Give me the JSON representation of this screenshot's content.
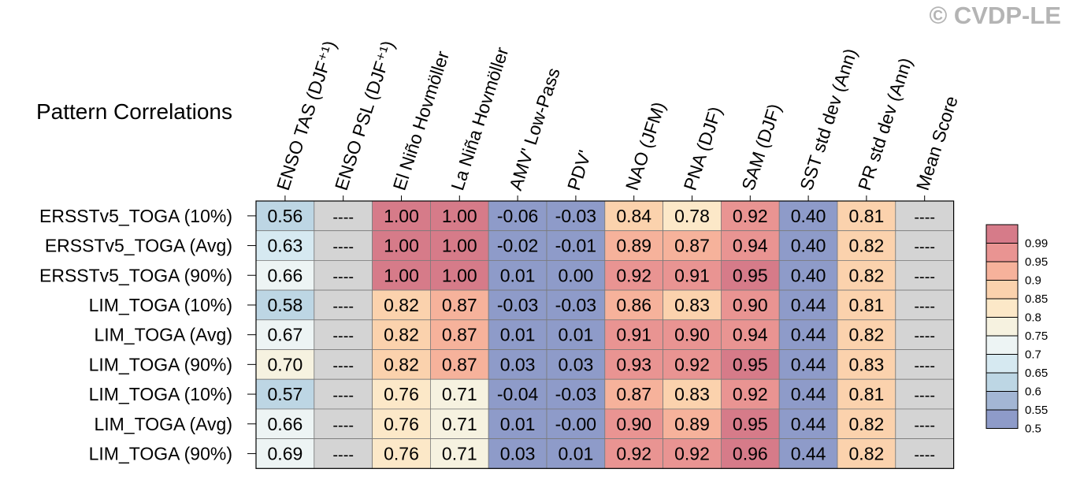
{
  "watermark": "© CVDP-LE",
  "chart_data": {
    "type": "heatmap",
    "title": "Pattern Correlations",
    "columns": [
      "ENSO TAS (DJF⁺¹)",
      "ENSO PSL (DJF⁺¹)",
      "El Niño Hovmöller",
      "La Niña Hovmöller",
      "AMV' Low-Pass",
      "PDV'",
      "NAO (JFM)",
      "PNA (DJF)",
      "SAM (DJF)",
      "SST std dev (Ann)",
      "PR std dev (Ann)",
      "Mean Score"
    ],
    "rows": [
      "ERSSTv5_TOGA (10%)",
      "ERSSTv5_TOGA (Avg)",
      "ERSSTv5_TOGA (90%)",
      "LIM_TOGA (10%)",
      "LIM_TOGA (Avg)",
      "LIM_TOGA (90%)",
      "LIM_TOGA (10%)",
      "LIM_TOGA (Avg)",
      "LIM_TOGA (90%)"
    ],
    "cells": [
      [
        "0.56",
        "----",
        "1.00",
        "1.00",
        "-0.06",
        "-0.03",
        "0.84",
        "0.78",
        "0.92",
        "0.40",
        "0.81",
        "----"
      ],
      [
        "0.63",
        "----",
        "1.00",
        "1.00",
        "-0.02",
        "-0.01",
        "0.89",
        "0.87",
        "0.94",
        "0.40",
        "0.82",
        "----"
      ],
      [
        "0.66",
        "----",
        "1.00",
        "1.00",
        "0.01",
        "0.00",
        "0.92",
        "0.91",
        "0.95",
        "0.40",
        "0.82",
        "----"
      ],
      [
        "0.58",
        "----",
        "0.82",
        "0.87",
        "-0.03",
        "-0.03",
        "0.86",
        "0.83",
        "0.90",
        "0.44",
        "0.81",
        "----"
      ],
      [
        "0.67",
        "----",
        "0.82",
        "0.87",
        "0.01",
        "0.01",
        "0.91",
        "0.90",
        "0.94",
        "0.44",
        "0.82",
        "----"
      ],
      [
        "0.70",
        "----",
        "0.82",
        "0.87",
        "0.03",
        "0.03",
        "0.93",
        "0.92",
        "0.95",
        "0.44",
        "0.83",
        "----"
      ],
      [
        "0.57",
        "----",
        "0.76",
        "0.71",
        "-0.04",
        "-0.03",
        "0.87",
        "0.83",
        "0.92",
        "0.44",
        "0.81",
        "----"
      ],
      [
        "0.66",
        "----",
        "0.76",
        "0.71",
        "0.01",
        "-0.00",
        "0.90",
        "0.89",
        "0.95",
        "0.44",
        "0.82",
        "----"
      ],
      [
        "0.69",
        "----",
        "0.76",
        "0.71",
        "0.03",
        "0.01",
        "0.92",
        "0.92",
        "0.96",
        "0.44",
        "0.82",
        "----"
      ]
    ],
    "colorbar": {
      "labels": [
        "0.99",
        "0.95",
        "0.9",
        "0.85",
        "0.8",
        "0.75",
        "0.7",
        "0.65",
        "0.6",
        "0.55",
        "0.5"
      ],
      "bin_edges": [
        0.5,
        0.55,
        0.6,
        0.65,
        0.7,
        0.75,
        0.8,
        0.85,
        0.9,
        0.95,
        0.99
      ],
      "colors_low_to_high": [
        "#8e9bc9",
        "#a3b6d4",
        "#bdd6e4",
        "#d6e9f1",
        "#edf4f4",
        "#f6f2e0",
        "#fce8c8",
        "#fbd2ad",
        "#f6b29b",
        "#e99492",
        "#d67b89"
      ],
      "missing_color": "#d4d4d4"
    }
  }
}
